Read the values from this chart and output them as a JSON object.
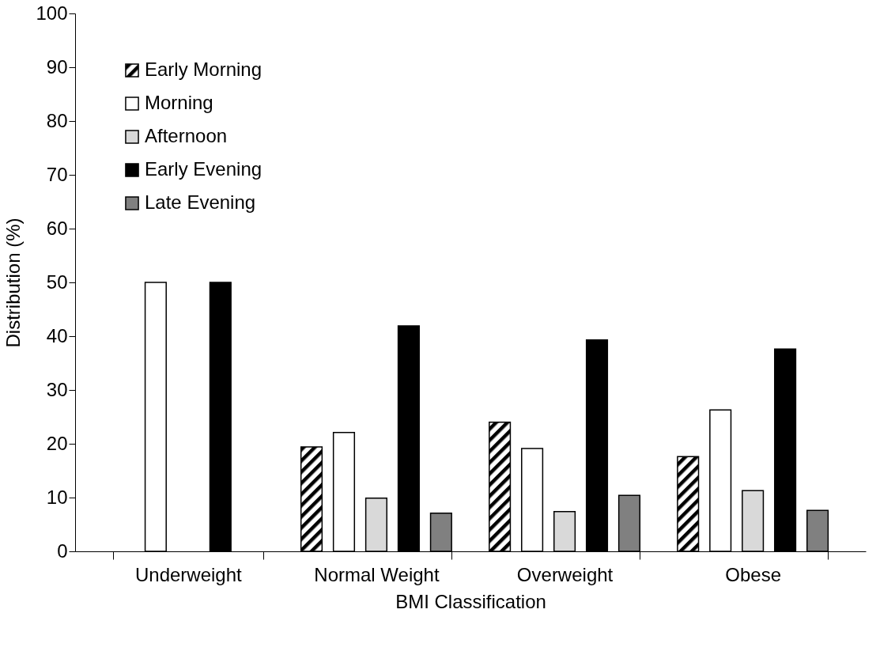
{
  "chart_data": {
    "type": "bar",
    "xlabel": "BMI Classification",
    "ylabel": "Distribution (%)",
    "categories": [
      "Underweight",
      "Normal Weight",
      "Overweight",
      "Obese"
    ],
    "series": [
      {
        "name": "Early Morning",
        "color": "#000000",
        "values": [
          null,
          19.4,
          24.0,
          17.6
        ]
      },
      {
        "name": "Morning",
        "color": "#ffffff",
        "values": [
          50,
          22.1,
          19.1,
          26.3
        ]
      },
      {
        "name": "Afternoon",
        "color": "#d9d9d9",
        "values": [
          null,
          9.9,
          7.4,
          11.3
        ]
      },
      {
        "name": "Early Evening",
        "color": "#000000",
        "values": [
          50,
          41.9,
          39.3,
          37.6
        ]
      },
      {
        "name": "Late Evening",
        "color": "#808080",
        "values": [
          null,
          7.1,
          10.4,
          7.6
        ]
      }
    ],
    "ylim": [
      0,
      100
    ],
    "yticks": [
      0,
      10,
      20,
      30,
      40,
      50,
      60,
      70,
      80,
      90,
      100
    ],
    "grid": false,
    "legend": "top left"
  }
}
